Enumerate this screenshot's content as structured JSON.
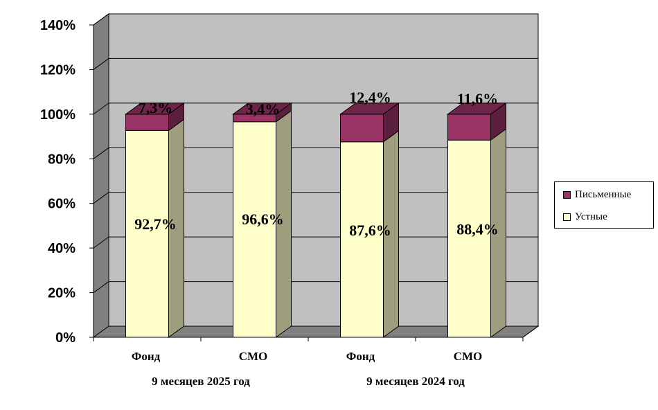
{
  "chart_data": {
    "type": "bar",
    "stacked": true,
    "percent_stacked": true,
    "three_d": true,
    "categories": [
      "Фонд",
      "СМО",
      "Фонд",
      "СМО"
    ],
    "groups": [
      {
        "label": "9 месяцев 2025 год",
        "categories": [
          0,
          1
        ]
      },
      {
        "label": "9 месяцев 2024 год",
        "categories": [
          2,
          3
        ]
      }
    ],
    "series": [
      {
        "name": "Устные",
        "values": [
          92.7,
          96.6,
          87.6,
          88.4
        ],
        "labels": [
          "92,7%",
          "96,6%",
          "87,6%",
          "88,4%"
        ],
        "color": "#FFFFCC"
      },
      {
        "name": "Письменные",
        "values": [
          7.3,
          3.4,
          12.4,
          11.6
        ],
        "labels": [
          "7,3%",
          "3,4%",
          "12,4%",
          "11,6%"
        ],
        "color": "#993366"
      }
    ],
    "ylim": [
      0,
      140
    ],
    "yticks": [
      0,
      20,
      40,
      60,
      80,
      100,
      120,
      140
    ],
    "ytick_labels": [
      "0%",
      "20%",
      "40%",
      "60%",
      "80%",
      "100%",
      "120%",
      "140%"
    ],
    "grid": true,
    "legend_position": "right"
  },
  "legend": {
    "items": [
      {
        "label": "Письменные",
        "color": "#993366"
      },
      {
        "label": "Устные",
        "color": "#FFFFCC"
      }
    ]
  },
  "colors": {
    "wall": "#C0C0C0",
    "side_wall": "#808080",
    "floor": "#808080"
  }
}
